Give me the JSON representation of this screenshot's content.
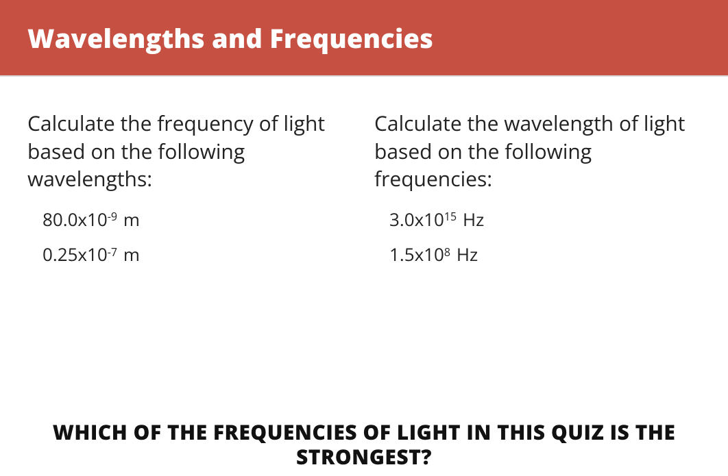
{
  "colors": {
    "header_bg": "#c65142",
    "header_fg": "#ffffff",
    "page_bg": "#ffffff",
    "text": "#222222"
  },
  "header": {
    "title": "Wavelengths and Frequencies"
  },
  "left": {
    "prompt": "Calculate the frequency of light based on the following wavelengths:",
    "items": [
      {
        "coef": "80.0x10",
        "exp": "-9",
        "unit": "m"
      },
      {
        "coef": "0.25x10",
        "exp": "-7",
        "unit": "m"
      }
    ]
  },
  "right": {
    "prompt": "Calculate the wavelength of light based on the following frequencies:",
    "items": [
      {
        "coef": "3.0x10",
        "exp": "15",
        "unit": "Hz"
      },
      {
        "coef": "1.5x10",
        "exp": "8",
        "unit": "Hz"
      }
    ]
  },
  "footer_question": "WHICH OF THE FREQUENCIES OF LIGHT IN THIS QUIZ IS THE STRONGEST?"
}
